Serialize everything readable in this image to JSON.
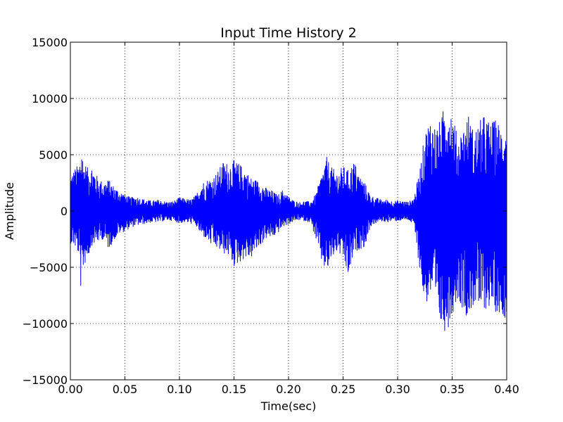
{
  "chart_data": {
    "type": "line",
    "title": "Input Time History 2",
    "xlabel": "Time(sec)",
    "ylabel": "Amplitude",
    "xlim": [
      0.0,
      0.4
    ],
    "ylim": [
      -15000,
      15000
    ],
    "grid": true,
    "x_ticks": [
      0.0,
      0.05,
      0.1,
      0.15,
      0.2,
      0.25,
      0.3,
      0.35,
      0.4
    ],
    "x_tick_labels": [
      "0.00",
      "0.05",
      "0.10",
      "0.15",
      "0.20",
      "0.25",
      "0.30",
      "0.35",
      "0.40"
    ],
    "y_ticks": [
      15000,
      10000,
      5000,
      0,
      -5000,
      -10000,
      -15000
    ],
    "y_tick_labels": [
      "15000",
      "10000",
      "5000",
      "0",
      "−5000",
      "−10000",
      "−15000"
    ],
    "series": [
      {
        "color": "#0000ff",
        "x": [
          0.0,
          0.004,
          0.008,
          0.01,
          0.012,
          0.016,
          0.02,
          0.025,
          0.03,
          0.035,
          0.04,
          0.045,
          0.05,
          0.055,
          0.06,
          0.065,
          0.07,
          0.075,
          0.08,
          0.085,
          0.09,
          0.095,
          0.1,
          0.105,
          0.11,
          0.115,
          0.12,
          0.125,
          0.13,
          0.135,
          0.14,
          0.145,
          0.15,
          0.155,
          0.16,
          0.165,
          0.17,
          0.175,
          0.18,
          0.185,
          0.19,
          0.195,
          0.2,
          0.205,
          0.21,
          0.215,
          0.22,
          0.225,
          0.23,
          0.235,
          0.24,
          0.245,
          0.25,
          0.255,
          0.26,
          0.265,
          0.27,
          0.275,
          0.28,
          0.285,
          0.29,
          0.295,
          0.3,
          0.305,
          0.31,
          0.315,
          0.32,
          0.325,
          0.33,
          0.335,
          0.34,
          0.345,
          0.35,
          0.355,
          0.36,
          0.365,
          0.37,
          0.375,
          0.38,
          0.385,
          0.39,
          0.395,
          0.4
        ],
        "upper": [
          3200,
          3800,
          4200,
          6000,
          4500,
          3800,
          4100,
          3000,
          2600,
          2800,
          2200,
          1800,
          1500,
          1200,
          1300,
          1100,
          1000,
          900,
          1000,
          900,
          800,
          900,
          1200,
          1100,
          1000,
          1400,
          2500,
          2800,
          3000,
          3500,
          4400,
          4300,
          4500,
          4200,
          3800,
          3000,
          2800,
          2500,
          2000,
          1800,
          1400,
          1900,
          1300,
          900,
          800,
          900,
          800,
          1500,
          3200,
          4800,
          3800,
          3500,
          4000,
          3600,
          4500,
          3200,
          2500,
          1400,
          1200,
          1000,
          1000,
          900,
          900,
          900,
          800,
          1200,
          3500,
          7000,
          8400,
          7500,
          8200,
          10500,
          9000,
          6500,
          7500,
          8600,
          7000,
          8000,
          8600,
          7800,
          8200,
          7500,
          8200
        ],
        "lower": [
          -2800,
          -3200,
          -4000,
          -7800,
          -5000,
          -4200,
          -3000,
          -2800,
          -2500,
          -3400,
          -2600,
          -2000,
          -1800,
          -1500,
          -1300,
          -1200,
          -1100,
          -1000,
          -1000,
          -900,
          -800,
          -900,
          -1100,
          -1000,
          -1100,
          -1300,
          -2200,
          -2500,
          -3200,
          -3400,
          -3800,
          -4000,
          -5000,
          -4600,
          -4200,
          -4300,
          -3600,
          -3000,
          -2400,
          -2400,
          -2000,
          -1400,
          -1200,
          -900,
          -800,
          -900,
          -1000,
          -2500,
          -4500,
          -5600,
          -4200,
          -3600,
          -4400,
          -6000,
          -3800,
          -3400,
          -3200,
          -1400,
          -1100,
          -900,
          -1000,
          -900,
          -900,
          -800,
          -800,
          -1300,
          -5000,
          -8600,
          -7500,
          -9000,
          -10500,
          -10800,
          -9200,
          -7800,
          -8800,
          -9600,
          -8300,
          -9000,
          -8800,
          -8500,
          -9000,
          -9200,
          -9600
        ]
      }
    ]
  }
}
